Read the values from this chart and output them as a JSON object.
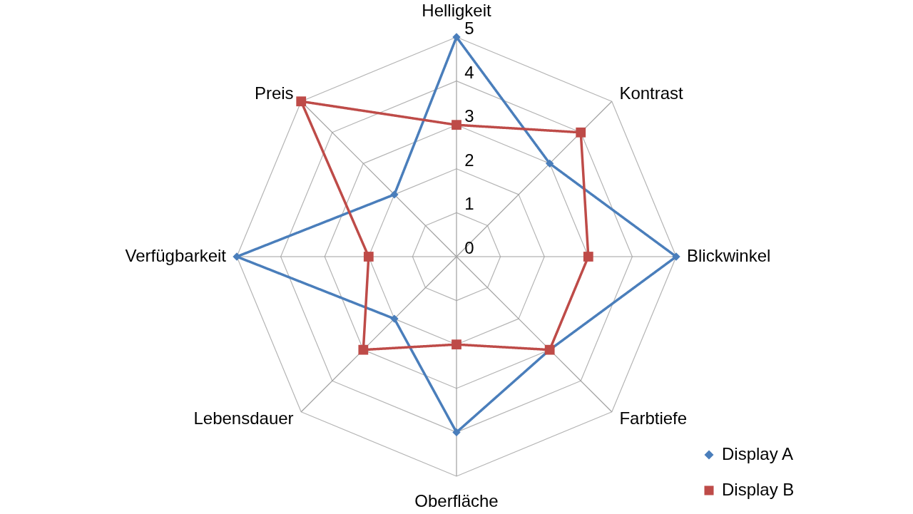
{
  "chart_data": {
    "type": "radar",
    "categories": [
      "Helligkeit",
      "Kontrast",
      "Blickwinkel",
      "Farbtiefe",
      "Oberfläche",
      "Lebensdauer",
      "Verfügbarkeit",
      "Preis"
    ],
    "series": [
      {
        "name": "Display A",
        "color": "#4a7ebb",
        "marker": "diamond",
        "values": [
          5,
          3,
          5,
          3,
          4,
          2,
          5,
          2
        ]
      },
      {
        "name": "Display B",
        "color": "#be4b48",
        "marker": "square",
        "values": [
          3,
          4,
          3,
          3,
          2,
          3,
          2,
          5
        ]
      }
    ],
    "ylim": [
      0,
      5
    ],
    "yticks": [
      0,
      1,
      2,
      3,
      4,
      5
    ],
    "grid": true,
    "legend": "bottom right"
  }
}
